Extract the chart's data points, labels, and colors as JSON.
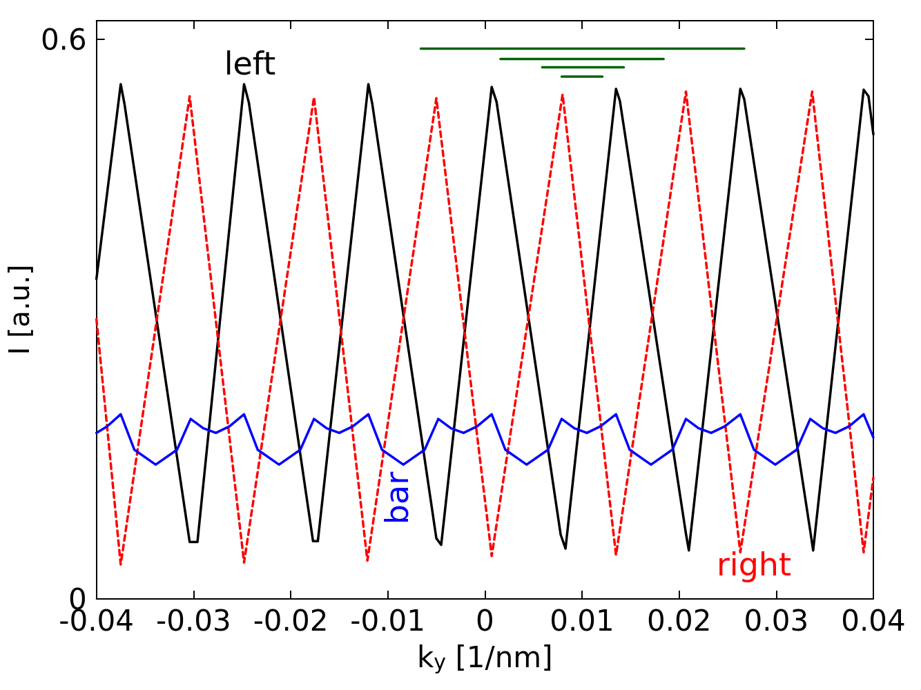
{
  "chart_data": {
    "type": "line",
    "xlabel": "k$_{y}$ [1/nm]",
    "ylabel": "I [a.u.]",
    "xlim": [
      -0.04,
      0.04
    ],
    "xticks": [
      -0.04,
      -0.03,
      -0.02,
      -0.01,
      0,
      0.01,
      0.02,
      0.03,
      0.04
    ],
    "ylim": [
      0,
      0.62
    ],
    "yticks": [
      0,
      0.6
    ],
    "marker": "none",
    "series": [
      {
        "name": "left",
        "color": "#000000",
        "line_style": "solid",
        "x": [
          -0.04,
          -0.0375,
          -0.0371,
          -0.0304,
          -0.0296,
          -0.0248,
          -0.0243,
          -0.0177,
          -0.0172,
          -0.012,
          -0.0116,
          -0.005,
          -0.0045,
          0.0007,
          0.0012,
          0.0078,
          0.0083,
          0.0135,
          0.0139,
          0.0207,
          0.021,
          0.0263,
          0.0267,
          0.0335,
          0.0338,
          0.039,
          0.0395,
          0.04
        ],
        "values": [
          0.343,
          0.552,
          0.53,
          0.061,
          0.061,
          0.552,
          0.532,
          0.062,
          0.062,
          0.552,
          0.531,
          0.065,
          0.058,
          0.549,
          0.533,
          0.069,
          0.054,
          0.547,
          0.534,
          0.07,
          0.052,
          0.547,
          0.536,
          0.073,
          0.052,
          0.546,
          0.539,
          0.498
        ]
      },
      {
        "name": "right",
        "color": "#ff0000",
        "line_style": "dashed",
        "x": [
          -0.04,
          -0.0375,
          -0.0304,
          -0.0248,
          -0.0176,
          -0.0121,
          -0.005,
          0.0007,
          0.008,
          0.0135,
          0.0207,
          0.0263,
          0.0337,
          0.039,
          0.04
        ],
        "values": [
          0.3,
          0.037,
          0.539,
          0.039,
          0.538,
          0.041,
          0.537,
          0.046,
          0.541,
          0.047,
          0.544,
          0.05,
          0.544,
          0.05,
          0.13
        ]
      },
      {
        "name": "bar",
        "color": "#0000ff",
        "line_style": "solid",
        "x": [
          -0.04,
          -0.0389,
          -0.0375,
          -0.0361,
          -0.0339,
          -0.0317,
          -0.0303,
          -0.029,
          -0.0277,
          -0.0263,
          -0.0248,
          -0.0234,
          -0.0212,
          -0.019,
          -0.0176,
          -0.0163,
          -0.015,
          -0.0136,
          -0.012,
          -0.0106,
          -0.0084,
          -0.0062,
          -0.0048,
          -0.0035,
          -0.0022,
          -0.0008,
          0.0007,
          0.0021,
          0.0043,
          0.0065,
          0.0079,
          0.0092,
          0.0105,
          0.0119,
          0.0135,
          0.0149,
          0.0171,
          0.0193,
          0.0207,
          0.022,
          0.0233,
          0.0247,
          0.0263,
          0.0277,
          0.0299,
          0.0321,
          0.0335,
          0.0348,
          0.0361,
          0.0375,
          0.039,
          0.04
        ],
        "values": [
          0.178,
          0.185,
          0.198,
          0.16,
          0.144,
          0.16,
          0.193,
          0.183,
          0.178,
          0.185,
          0.198,
          0.16,
          0.144,
          0.16,
          0.193,
          0.183,
          0.178,
          0.185,
          0.198,
          0.16,
          0.144,
          0.16,
          0.193,
          0.183,
          0.178,
          0.185,
          0.198,
          0.16,
          0.144,
          0.16,
          0.193,
          0.183,
          0.178,
          0.185,
          0.198,
          0.16,
          0.144,
          0.16,
          0.193,
          0.183,
          0.178,
          0.185,
          0.198,
          0.16,
          0.144,
          0.16,
          0.193,
          0.183,
          0.178,
          0.185,
          0.198,
          0.173
        ]
      },
      {
        "color": "#006400",
        "line_style": "solid",
        "x": [
          -0.0066,
          0.0267
        ],
        "values": [
          0.59,
          0.59
        ]
      },
      {
        "color": "#006400",
        "line_style": "solid",
        "x": [
          0.0016,
          0.0184
        ],
        "values": [
          0.579,
          0.579
        ]
      },
      {
        "color": "#006400",
        "line_style": "solid",
        "x": [
          0.0059,
          0.0143
        ],
        "values": [
          0.57,
          0.57
        ]
      },
      {
        "color": "#006400",
        "line_style": "solid",
        "x": [
          0.0079,
          0.0121
        ],
        "values": [
          0.56,
          0.56
        ]
      }
    ]
  }
}
